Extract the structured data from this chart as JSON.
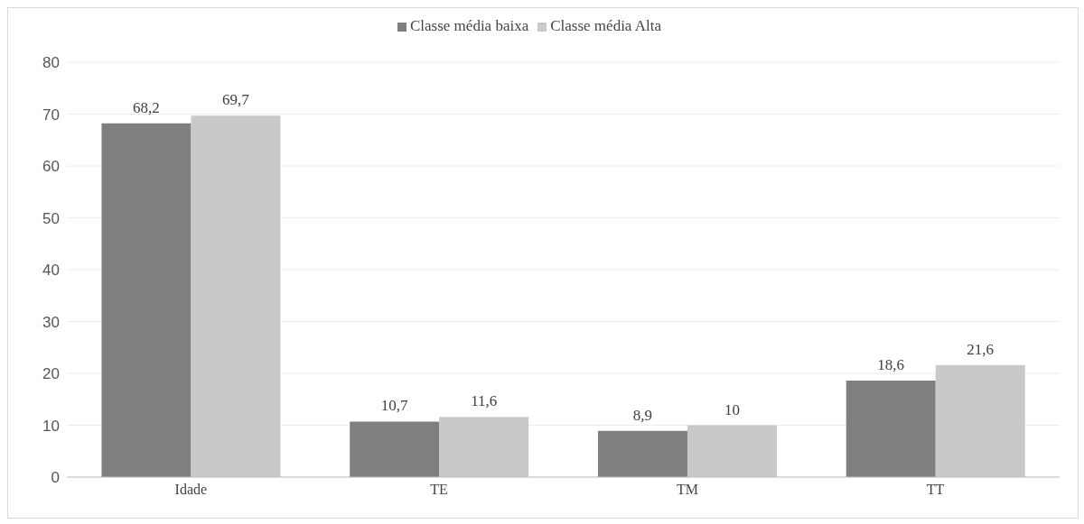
{
  "chart_data": {
    "type": "bar",
    "categories": [
      "Idade",
      "TE",
      "TM",
      "TT"
    ],
    "series": [
      {
        "name": "Classe média baixa",
        "color": "#7f7f7f",
        "values": [
          68.2,
          10.7,
          8.9,
          18.6
        ],
        "value_labels": [
          "68,2",
          "10,7",
          "8,9",
          "18,6"
        ]
      },
      {
        "name": "Classe média Alta",
        "color": "#c9c9c9",
        "values": [
          69.7,
          11.6,
          10,
          21.6
        ],
        "value_labels": [
          "69,7",
          "11,6",
          "10",
          "21,6"
        ]
      }
    ],
    "ylim": [
      0,
      80
    ],
    "yticks": [
      0,
      10,
      20,
      30,
      40,
      50,
      60,
      70,
      80
    ],
    "grid": "y",
    "legend": "top"
  }
}
